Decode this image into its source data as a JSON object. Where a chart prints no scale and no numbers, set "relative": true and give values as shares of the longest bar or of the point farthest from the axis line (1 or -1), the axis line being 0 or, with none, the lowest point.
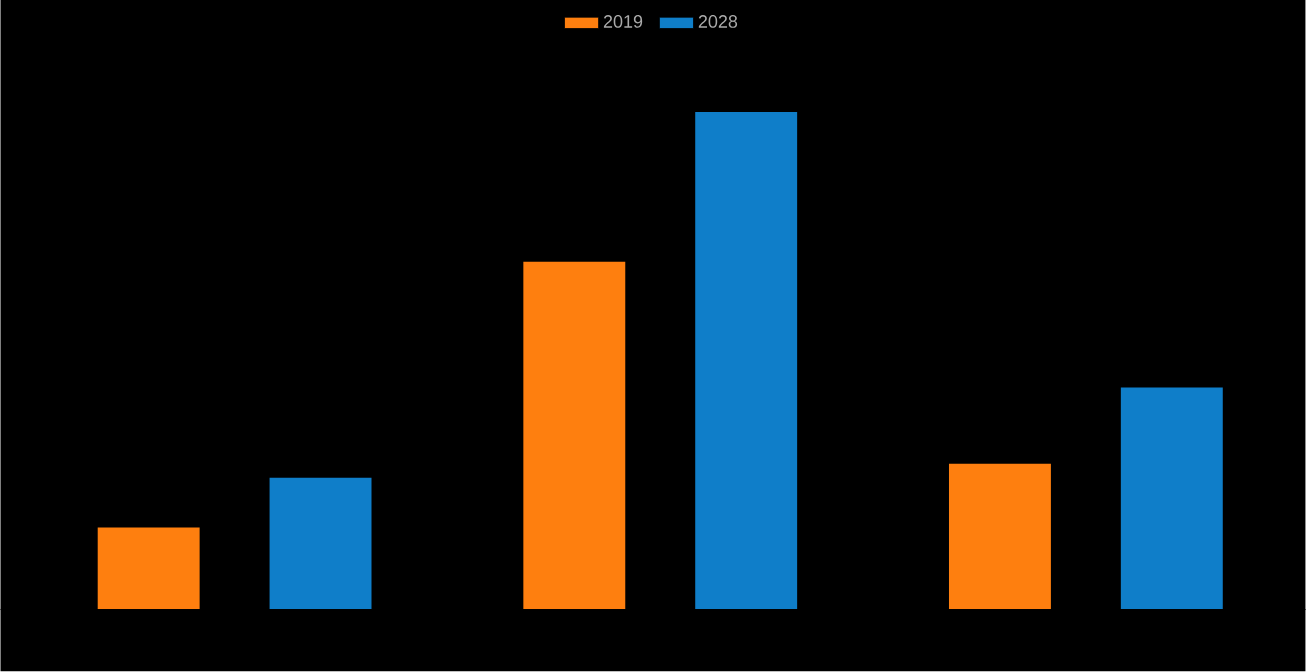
{
  "chart_data": {
    "type": "bar",
    "relative": true,
    "categories": [
      null,
      null,
      null
    ],
    "legend": "top",
    "series": [
      {
        "name": "2019",
        "color": "#fe7f0f",
        "values": [
          0.165,
          0.699,
          0.293
        ]
      },
      {
        "name": "2028",
        "color": "#0f7ec9",
        "values": [
          0.265,
          1,
          0.446
        ]
      }
    ]
  }
}
